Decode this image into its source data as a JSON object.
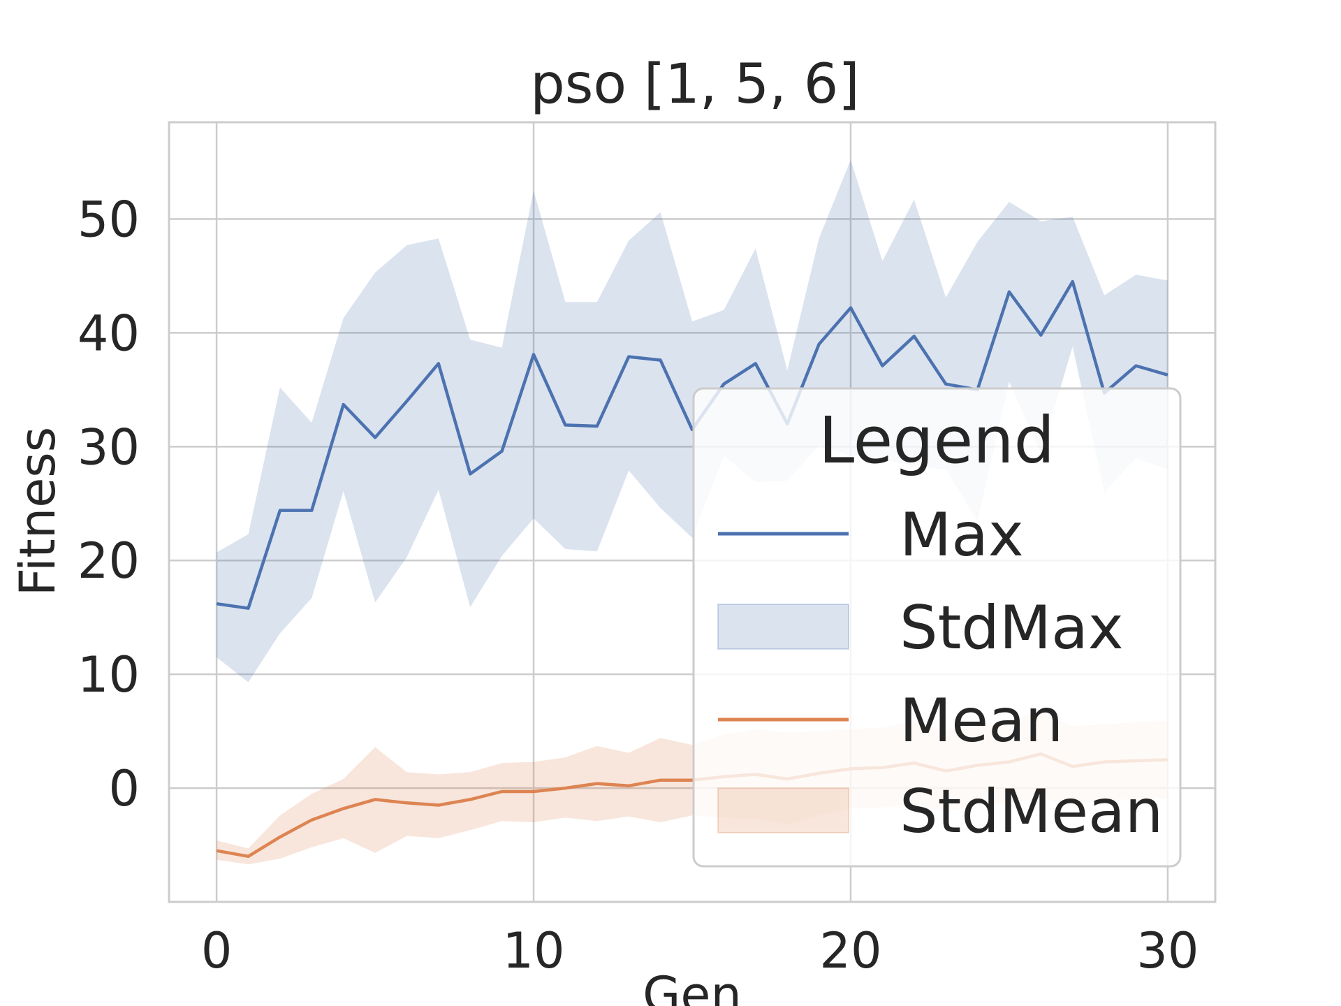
{
  "chart_data": {
    "type": "line",
    "title": "pso [1, 5, 6]",
    "xlabel": "Gen",
    "ylabel": "Fitness",
    "x": [
      0,
      1,
      2,
      3,
      4,
      5,
      6,
      7,
      8,
      9,
      10,
      11,
      12,
      13,
      14,
      15,
      16,
      17,
      18,
      19,
      20,
      21,
      22,
      23,
      24,
      25,
      26,
      27,
      28,
      29,
      30
    ],
    "xlim": [
      -1.5,
      31.5
    ],
    "ylim": [
      -10,
      58.5
    ],
    "xticks": [
      0,
      10,
      20,
      30
    ],
    "yticks": [
      0,
      10,
      20,
      30,
      40,
      50
    ],
    "grid": true,
    "legend": {
      "title": "Legend",
      "placement": "lower-right",
      "entries": [
        {
          "label": "Max",
          "kind": "line",
          "color": "#4c72b0"
        },
        {
          "label": "StdMax",
          "kind": "band",
          "color": "#4c72b0"
        },
        {
          "label": "Mean",
          "kind": "line",
          "color": "#dd8452"
        },
        {
          "label": "StdMean",
          "kind": "band",
          "color": "#dd8452"
        }
      ]
    },
    "series": [
      {
        "name": "Max",
        "color": "#4c72b0",
        "values": [
          16.2,
          15.8,
          24.4,
          24.4,
          33.7,
          30.8,
          34.0,
          37.3,
          27.6,
          29.6,
          38.1,
          31.9,
          31.8,
          37.9,
          37.6,
          31.5,
          35.5,
          37.3,
          32.0,
          39.0,
          42.2,
          37.1,
          39.7,
          35.5,
          35.0,
          43.6,
          39.8,
          44.5,
          34.7,
          37.1,
          36.3
        ],
        "band_name": "StdMax",
        "band_lower": [
          11.5,
          9.3,
          13.6,
          16.7,
          26.1,
          16.3,
          20.3,
          26.2,
          15.9,
          20.4,
          23.7,
          21.0,
          20.8,
          27.9,
          24.6,
          22.0,
          29.2,
          26.9,
          27.0,
          30.1,
          29.2,
          28.9,
          28.3,
          28.0,
          23.5,
          35.7,
          29.4,
          38.8,
          26.0,
          29.0,
          28.0
        ],
        "band_upper": [
          20.7,
          22.3,
          35.2,
          32.1,
          41.3,
          45.3,
          47.7,
          48.3,
          39.4,
          38.7,
          52.5,
          42.7,
          42.7,
          48.1,
          50.6,
          41.0,
          42.0,
          47.4,
          36.7,
          48.3,
          55.2,
          46.3,
          51.7,
          43.1,
          48.0,
          51.5,
          49.8,
          50.2,
          43.3,
          45.1,
          44.6
        ]
      },
      {
        "name": "Mean",
        "color": "#dd8452",
        "values": [
          -5.5,
          -6.0,
          -4.3,
          -2.8,
          -1.8,
          -1.0,
          -1.3,
          -1.5,
          -1.0,
          -0.3,
          -0.3,
          0.0,
          0.4,
          0.2,
          0.7,
          0.7,
          1.0,
          1.2,
          0.8,
          1.3,
          1.7,
          1.8,
          2.2,
          1.5,
          2.0,
          2.3,
          3.0,
          1.9,
          2.3,
          2.4,
          2.5
        ],
        "band_name": "StdMean",
        "band_lower": [
          -6.3,
          -6.7,
          -6.2,
          -5.2,
          -4.4,
          -5.7,
          -4.2,
          -4.4,
          -3.7,
          -2.9,
          -3.0,
          -2.6,
          -2.9,
          -2.5,
          -3.0,
          -2.4,
          -2.6,
          -2.7,
          -3.2,
          -2.4,
          -1.8,
          -1.7,
          -1.4,
          -2.1,
          -1.5,
          -1.3,
          -0.9,
          -1.6,
          -1.0,
          -1.0,
          -0.9
        ],
        "band_upper": [
          -4.6,
          -5.3,
          -2.4,
          -0.5,
          0.8,
          3.6,
          1.4,
          1.2,
          1.4,
          2.2,
          2.3,
          2.7,
          3.7,
          3.1,
          4.4,
          3.8,
          4.7,
          5.2,
          4.9,
          5.0,
          5.2,
          5.3,
          5.8,
          5.1,
          5.5,
          5.9,
          6.9,
          5.4,
          5.6,
          5.8,
          5.9
        ]
      }
    ]
  }
}
